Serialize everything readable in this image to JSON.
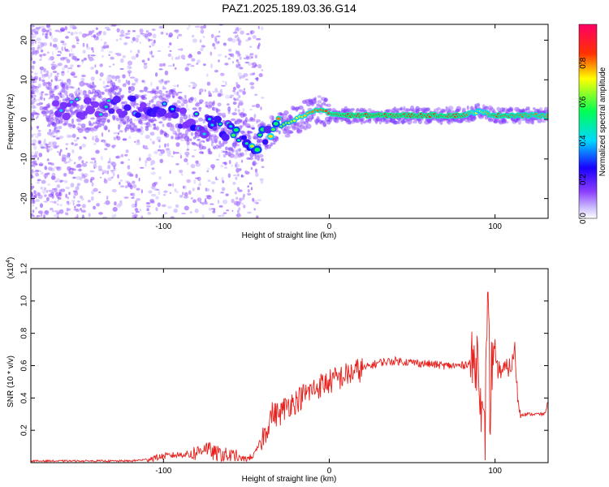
{
  "figure": {
    "title": "PAZ1.2025.189.03.36.G14"
  },
  "chart_data": [
    {
      "type": "heatmap",
      "title": "PAZ1.2025.189.03.36.G14",
      "xlabel": "Height of straight line (km)",
      "ylabel": "Frequency (Hz)",
      "xlim": [
        -180,
        132
      ],
      "ylim": [
        -25,
        24
      ],
      "x_ticks": [
        -100,
        0,
        100
      ],
      "x_tick_labels": [
        "-100",
        "0",
        "100"
      ],
      "y_ticks": [
        -20,
        -10,
        0,
        10,
        20
      ],
      "y_tick_labels": [
        "-20",
        "-10",
        "0",
        "10",
        "20"
      ],
      "colorbar": {
        "label": "Normalized spectral amplitude",
        "range": [
          0,
          1
        ],
        "ticks": [
          0.0,
          0.2,
          0.4,
          0.6,
          0.8
        ],
        "tick_labels": [
          "0.0",
          "0.2",
          "0.4",
          "0.6",
          "0.8"
        ],
        "colormap": [
          "#ffffff",
          "#b9a6ff",
          "#7b2cff",
          "#0000ff",
          "#00e0ff",
          "#00ff66",
          "#ffff00",
          "#ff0000",
          "#ff0066"
        ]
      },
      "ridge": {
        "x": [
          -140,
          -120,
          -100,
          -80,
          -60,
          -45,
          -35,
          -25,
          -15,
          -10,
          -5,
          0,
          10,
          40,
          80,
          90,
          100,
          132
        ],
        "y": [
          3,
          3,
          2,
          -1,
          -3,
          -6,
          -3,
          -1,
          1,
          2,
          2.5,
          1.5,
          1,
          1,
          1,
          2,
          1,
          1
        ],
        "amp": [
          0.25,
          0.3,
          0.35,
          0.4,
          0.45,
          0.5,
          0.55,
          0.65,
          0.75,
          0.8,
          0.82,
          0.85,
          0.9,
          0.9,
          0.88,
          0.7,
          0.85,
          0.8
        ]
      },
      "grid": false
    },
    {
      "type": "line",
      "xlabel": "Height of straight line (km)",
      "ylabel": "SNR (10 * v/v)",
      "y_scale_label": "(x10",
      "y_scale_exponent": "4",
      "y_scale_suffix": ")",
      "xlim": [
        -180,
        132
      ],
      "ylim": [
        0,
        1.2
      ],
      "x_ticks": [
        -100,
        0,
        100
      ],
      "x_tick_labels": [
        "-100",
        "0",
        "100"
      ],
      "y_ticks": [
        0.2,
        0.4,
        0.6,
        0.8,
        1.0,
        1.2
      ],
      "y_tick_labels": [
        "0.2",
        "0.4",
        "0.6",
        "0.8",
        "1.0",
        "1.2"
      ],
      "color": "#e8201c",
      "series": [
        {
          "x": [
            -180,
            -120,
            -110,
            -100,
            -90,
            -80,
            -75,
            -70,
            -60,
            -50,
            -45,
            -42,
            -38,
            -35,
            -30,
            -25,
            -20,
            -15,
            -10,
            -5,
            0,
            5,
            10,
            15,
            20,
            25,
            30,
            40,
            50,
            60,
            70,
            80,
            85,
            88,
            90,
            92,
            94,
            95,
            96,
            97,
            98,
            100,
            105,
            110,
            112,
            114,
            116,
            120,
            125,
            130,
            132
          ],
          "y": [
            0.01,
            0.01,
            0.02,
            0.04,
            0.05,
            0.06,
            0.1,
            0.06,
            0.04,
            0.02,
            0.05,
            0.12,
            0.2,
            0.3,
            0.3,
            0.36,
            0.38,
            0.42,
            0.45,
            0.48,
            0.5,
            0.52,
            0.54,
            0.56,
            0.58,
            0.6,
            0.62,
            0.63,
            0.62,
            0.61,
            0.6,
            0.6,
            0.62,
            0.6,
            0.7,
            0.25,
            0.15,
            0.9,
            1.15,
            0.2,
            0.62,
            0.58,
            0.57,
            0.6,
            0.7,
            0.35,
            0.3,
            0.3,
            0.3,
            0.3,
            0.38
          ]
        }
      ],
      "grid": false
    }
  ]
}
